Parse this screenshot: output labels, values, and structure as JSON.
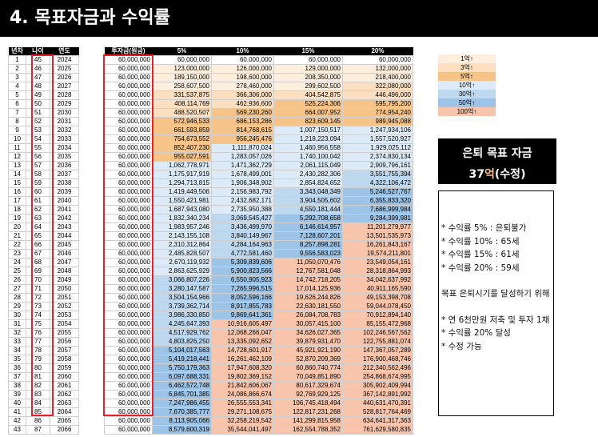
{
  "title": "4. 목표자금과 수익률",
  "left_headers": [
    "년차",
    "나이",
    "연도"
  ],
  "main_headers": [
    "투자금(원금)",
    "5%",
    "10%",
    "15%",
    "20%"
  ],
  "rows": [
    [
      "1",
      "45",
      "2024",
      "60,000,000",
      "60,000,000",
      "60,000,000",
      "60,000,000",
      "60,000,000"
    ],
    [
      "2",
      "46",
      "2025",
      "60,000,000",
      "123,000,000",
      "126,000,000",
      "129,000,000",
      "132,000,000"
    ],
    [
      "3",
      "47",
      "2026",
      "60,000,000",
      "189,150,000",
      "198,600,000",
      "208,350,000",
      "218,400,000"
    ],
    [
      "4",
      "48",
      "2027",
      "60,000,000",
      "258,607,500",
      "278,460,000",
      "299,602,500",
      "322,080,000"
    ],
    [
      "5",
      "49",
      "2028",
      "60,000,000",
      "331,537,875",
      "366,306,000",
      "404,542,875",
      "446,496,000"
    ],
    [
      "6",
      "50",
      "2029",
      "60,000,000",
      "408,114,769",
      "462,936,600",
      "525,224,306",
      "595,795,200"
    ],
    [
      "7",
      "51",
      "2030",
      "60,000,000",
      "488,520,507",
      "569,230,260",
      "664,007,952",
      "774,954,240"
    ],
    [
      "8",
      "52",
      "2031",
      "60,000,000",
      "572,946,533",
      "686,153,286",
      "823,609,145",
      "989,945,088"
    ],
    [
      "9",
      "53",
      "2032",
      "60,000,000",
      "661,593,859",
      "814,768,615",
      "1,007,150,517",
      "1,247,934,106"
    ],
    [
      "10",
      "54",
      "2033",
      "60,000,000",
      "754,673,552",
      "956,245,476",
      "1,218,223,094",
      "1,557,520,927"
    ],
    [
      "11",
      "55",
      "2034",
      "60,000,000",
      "852,407,230",
      "1,111,870,024",
      "1,460,956,558",
      "1,929,025,112"
    ],
    [
      "12",
      "56",
      "2035",
      "60,000,000",
      "955,027,591",
      "1,283,057,026",
      "1,740,100,042",
      "2,374,830,134"
    ],
    [
      "13",
      "57",
      "2036",
      "60,000,000",
      "1,062,778,971",
      "1,471,362,729",
      "2,061,115,049",
      "2,909,796,161"
    ],
    [
      "14",
      "58",
      "2037",
      "60,000,000",
      "1,175,917,919",
      "1,678,499,001",
      "2,430,282,306",
      "3,551,755,394"
    ],
    [
      "15",
      "59",
      "2038",
      "60,000,000",
      "1,294,713,815",
      "1,906,348,902",
      "2,854,824,652",
      "4,322,106,472"
    ],
    [
      "16",
      "60",
      "2039",
      "60,000,000",
      "1,419,449,506",
      "2,156,983,792",
      "3,343,048,349",
      "5,246,527,767"
    ],
    [
      "17",
      "61",
      "2040",
      "60,000,000",
      "1,550,421,981",
      "2,432,682,171",
      "3,904,505,602",
      "6,355,833,320"
    ],
    [
      "18",
      "62",
      "2041",
      "60,000,000",
      "1,687,943,080",
      "2,735,950,388",
      "4,550,181,444",
      "7,686,999,984"
    ],
    [
      "19",
      "63",
      "2042",
      "60,000,000",
      "1,832,340,234",
      "3,069,545,427",
      "5,292,708,658",
      "9,284,399,981"
    ],
    [
      "20",
      "64",
      "2043",
      "60,000,000",
      "1,983,957,246",
      "3,436,499,970",
      "6,146,614,957",
      "11,201,279,977"
    ],
    [
      "21",
      "65",
      "2044",
      "60,000,000",
      "2,143,155,108",
      "3,840,149,967",
      "7,128,607,201",
      "13,501,535,973"
    ],
    [
      "22",
      "66",
      "2045",
      "60,000,000",
      "2,310,312,864",
      "4,284,164,963",
      "8,257,898,281",
      "16,261,843,167"
    ],
    [
      "23",
      "67",
      "2046",
      "60,000,000",
      "2,485,828,507",
      "4,772,581,460",
      "9,556,583,023",
      "19,574,211,801"
    ],
    [
      "24",
      "68",
      "2047",
      "60,000,000",
      "2,670,119,932",
      "5,309,839,606",
      "11,050,070,476",
      "23,549,054,161"
    ],
    [
      "25",
      "69",
      "2048",
      "60,000,000",
      "2,863,625,929",
      "5,900,823,566",
      "12,767,581,048",
      "28,318,864,993"
    ],
    [
      "26",
      "70",
      "2049",
      "60,000,000",
      "3,066,807,226",
      "6,550,905,923",
      "14,742,718,205",
      "34,042,637,992"
    ],
    [
      "27",
      "71",
      "2050",
      "60,000,000",
      "3,280,147,587",
      "7,265,996,515",
      "17,014,125,936",
      "40,911,165,590"
    ],
    [
      "28",
      "72",
      "2051",
      "60,000,000",
      "3,504,154,966",
      "8,052,596,166",
      "19,626,244,826",
      "49,153,398,708"
    ],
    [
      "29",
      "73",
      "2052",
      "60,000,000",
      "3,739,362,714",
      "8,917,855,783",
      "22,630,181,550",
      "59,044,078,450"
    ],
    [
      "30",
      "74",
      "2053",
      "60,000,000",
      "3,986,330,850",
      "9,869,641,361",
      "26,084,708,783",
      "70,912,894,140"
    ],
    [
      "31",
      "75",
      "2054",
      "60,000,000",
      "4,245,647,393",
      "10,916,605,497",
      "30,057,415,100",
      "85,155,472,968"
    ],
    [
      "32",
      "76",
      "2055",
      "60,000,000",
      "4,517,929,762",
      "12,068,266,047",
      "34,626,027,365",
      "102,246,567,562"
    ],
    [
      "33",
      "77",
      "2056",
      "60,000,000",
      "4,803,826,250",
      "13,335,092,652",
      "39,879,931,470",
      "122,755,881,074"
    ],
    [
      "34",
      "78",
      "2057",
      "60,000,000",
      "5,104,017,563",
      "14,728,601,917",
      "45,921,921,190",
      "147,367,057,289"
    ],
    [
      "35",
      "79",
      "2058",
      "60,000,000",
      "5,419,218,441",
      "16,261,462,109",
      "52,870,209,369",
      "176,900,468,746"
    ],
    [
      "36",
      "80",
      "2059",
      "60,000,000",
      "5,750,179,363",
      "17,947,608,320",
      "60,860,740,774",
      "212,340,562,496"
    ],
    [
      "37",
      "81",
      "2060",
      "60,000,000",
      "6,097,688,331",
      "19,802,369,152",
      "70,049,851,890",
      "254,868,674,995"
    ],
    [
      "38",
      "82",
      "2061",
      "60,000,000",
      "6,462,572,748",
      "21,842,606,067",
      "80,617,329,674",
      "305,902,409,994"
    ],
    [
      "39",
      "83",
      "2062",
      "60,000,000",
      "6,845,701,385",
      "24,086,866,674",
      "92,769,929,125",
      "367,142,891,992"
    ],
    [
      "40",
      "84",
      "2063",
      "60,000,000",
      "7,247,986,455",
      "26,555,553,341",
      "106,745,418,494",
      "440,631,470,391"
    ],
    [
      "41",
      "85",
      "2064",
      "60,000,000",
      "7,670,385,777",
      "29,271,108,675",
      "122,817,231,268",
      "528,817,764,469"
    ],
    [
      "42",
      "86",
      "2065",
      "60,000,000",
      "8,113,905,066",
      "32,258,219,542",
      "141,299,815,958",
      "634,641,317,363"
    ],
    [
      "43",
      "87",
      "2066",
      "60,000,000",
      "8,579,600,319",
      "35,544,041,497",
      "162,554,788,352",
      "761,629,580,835"
    ]
  ],
  "legend": [
    {
      "label": "1억↑",
      "color": "#fdeedd"
    },
    {
      "label": "3억↑",
      "color": "#fbdfc0"
    },
    {
      "label": "5억↑",
      "color": "#f6c488"
    },
    {
      "label": "10억↑",
      "color": "#dcebf7"
    },
    {
      "label": "30억↑",
      "color": "#bed8ef"
    },
    {
      "label": "50억↑",
      "color": "#9dc3e6"
    },
    {
      "label": "100억↑",
      "color": "#f8c4ab"
    }
  ],
  "goal": {
    "line1": "은퇴 목표 자금",
    "amount": "37",
    "unit": "억",
    "suffix": "(수정)"
  },
  "notes": {
    "items": [
      "* 수익률 5% : 은퇴불가",
      "* 수익률 10% : 65세",
      "* 수익률 15% : 61세",
      "* 수익률 20% : 59세"
    ],
    "para1": "목표 은퇴시기를 달성하기 위해",
    "para2": [
      "* 연 6천만원 저축 및 투자 1채",
      "* 수익률 20% 달성",
      "* 수정 가능"
    ]
  }
}
